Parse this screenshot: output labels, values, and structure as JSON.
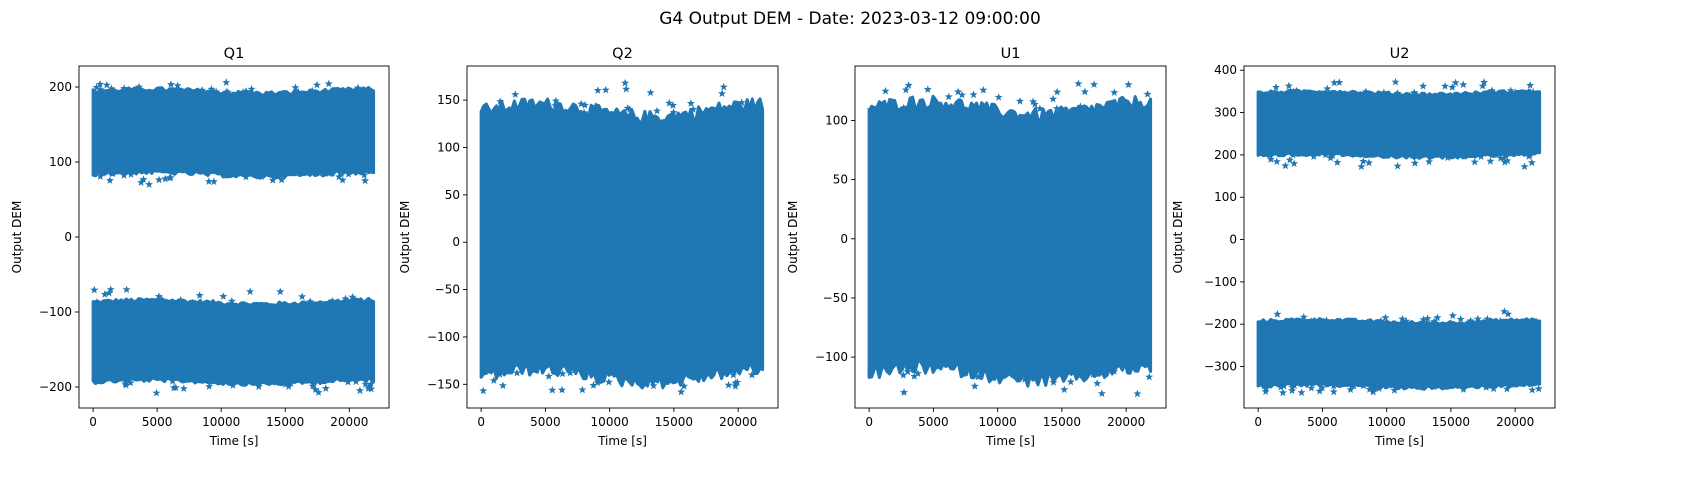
{
  "figure": {
    "suptitle": "G4 Output DEM - Date: 2023-03-12 09:00:00",
    "series_color": "#1f77b4",
    "marker": "star"
  },
  "chart_data": [
    {
      "type": "scatter",
      "title": "Q1",
      "xlabel": "Time [s]",
      "ylabel": "Output DEM",
      "xlim": [
        -1100,
        23100
      ],
      "ylim": [
        -228,
        228
      ],
      "xticks": [
        0,
        5000,
        10000,
        15000,
        20000
      ],
      "yticks": [
        200,
        100,
        0,
        -100,
        -200
      ],
      "x_range": [
        0,
        21900
      ],
      "bands": [
        {
          "low": -192,
          "high": -88,
          "low_outliers": -208,
          "high_outliers": -70
        },
        {
          "low": 85,
          "high": 193,
          "low_outliers": 70,
          "high_outliers": 206
        }
      ]
    },
    {
      "type": "scatter",
      "title": "Q2",
      "xlabel": "Time [s]",
      "ylabel": "Output DEM",
      "xlim": [
        -1100,
        23100
      ],
      "ylim": [
        -175,
        186
      ],
      "xticks": [
        0,
        5000,
        10000,
        15000,
        20000
      ],
      "yticks": [
        150,
        100,
        50,
        0,
        -50,
        -100,
        -150
      ],
      "x_range": [
        0,
        21900
      ],
      "bands": [
        {
          "low": -138,
          "high": 136,
          "low_outliers": -158,
          "high_outliers": 168
        }
      ]
    },
    {
      "type": "scatter",
      "title": "U1",
      "xlabel": "Time [s]",
      "ylabel": "Output DEM",
      "xlim": [
        -1100,
        23100
      ],
      "ylim": [
        -143,
        146
      ],
      "xticks": [
        0,
        5000,
        10000,
        15000,
        20000
      ],
      "yticks": [
        100,
        50,
        0,
        -50,
        -100
      ],
      "x_range": [
        0,
        21900
      ],
      "bands": [
        {
          "low": -112,
          "high": 108,
          "low_outliers": -131,
          "high_outliers": 131
        }
      ]
    },
    {
      "type": "scatter",
      "title": "U2",
      "xlabel": "Time [s]",
      "ylabel": "Output DEM",
      "xlim": [
        -1100,
        23100
      ],
      "ylim": [
        -398,
        410
      ],
      "xticks": [
        0,
        5000,
        10000,
        15000,
        20000
      ],
      "yticks": [
        400,
        300,
        200,
        100,
        0,
        -100,
        -200,
        -300
      ],
      "x_range": [
        0,
        21900
      ],
      "bands": [
        {
          "low": -345,
          "high": -195,
          "low_outliers": -362,
          "high_outliers": -170
        },
        {
          "low": 200,
          "high": 345,
          "low_outliers": 172,
          "high_outliers": 372
        }
      ]
    }
  ]
}
